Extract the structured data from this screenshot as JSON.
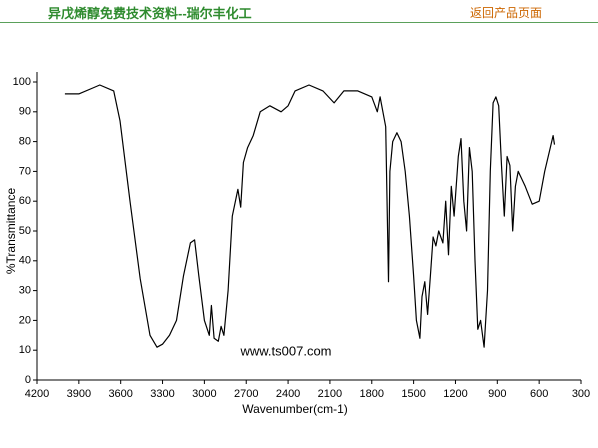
{
  "header": {
    "title": "异戊烯醇免费技术资料--瑞尔丰化工",
    "link": "返回产品页面"
  },
  "chart_data": {
    "type": "line",
    "xlabel": "Wavenumber(cm-1)",
    "ylabel": "%Transmittance",
    "annotation": "www.ts007.com",
    "color": "#000000",
    "xlim": [
      4200,
      300
    ],
    "xticks": [
      4200,
      3900,
      3600,
      3300,
      3000,
      2700,
      2400,
      2100,
      1800,
      1500,
      1200,
      900,
      600,
      300
    ],
    "ylim": [
      0,
      100
    ],
    "yticks": [
      0,
      10,
      20,
      30,
      40,
      50,
      60,
      70,
      80,
      90,
      100
    ],
    "x": [
      4000,
      3900,
      3800,
      3750,
      3650,
      3605,
      3533,
      3460,
      3390,
      3340,
      3300,
      3250,
      3200,
      3150,
      3100,
      3070,
      3040,
      3000,
      2965,
      2950,
      2930,
      2900,
      2880,
      2860,
      2830,
      2800,
      2760,
      2740,
      2720,
      2690,
      2650,
      2600,
      2530,
      2450,
      2400,
      2350,
      2250,
      2150,
      2070,
      2000,
      1900,
      1800,
      1760,
      1740,
      1700,
      1680,
      1670,
      1650,
      1620,
      1590,
      1560,
      1530,
      1500,
      1480,
      1455,
      1440,
      1420,
      1400,
      1380,
      1360,
      1340,
      1320,
      1290,
      1270,
      1250,
      1230,
      1210,
      1180,
      1160,
      1140,
      1120,
      1100,
      1080,
      1060,
      1040,
      1020,
      995,
      970,
      950,
      930,
      910,
      890,
      870,
      850,
      830,
      810,
      790,
      770,
      750,
      700,
      650,
      600,
      560,
      520,
      500,
      490
    ],
    "values": [
      96,
      96,
      98,
      99,
      97,
      87,
      60,
      34,
      15,
      11,
      12,
      15,
      20,
      35,
      46,
      47,
      35,
      20,
      15,
      25,
      14,
      13,
      18,
      15,
      30,
      55,
      64,
      58,
      73,
      78,
      82,
      90,
      92,
      90,
      92,
      97,
      99,
      97,
      93,
      97,
      97,
      95,
      90,
      95,
      85,
      33,
      70,
      80,
      83,
      80,
      70,
      55,
      35,
      20,
      14,
      28,
      33,
      22,
      35,
      48,
      45,
      50,
      46,
      60,
      42,
      65,
      55,
      75,
      81,
      60,
      50,
      78,
      70,
      40,
      17,
      20,
      11,
      30,
      70,
      93,
      95,
      92,
      72,
      55,
      75,
      72,
      50,
      65,
      70,
      65,
      59,
      60,
      70,
      78,
      82,
      79
    ]
  }
}
